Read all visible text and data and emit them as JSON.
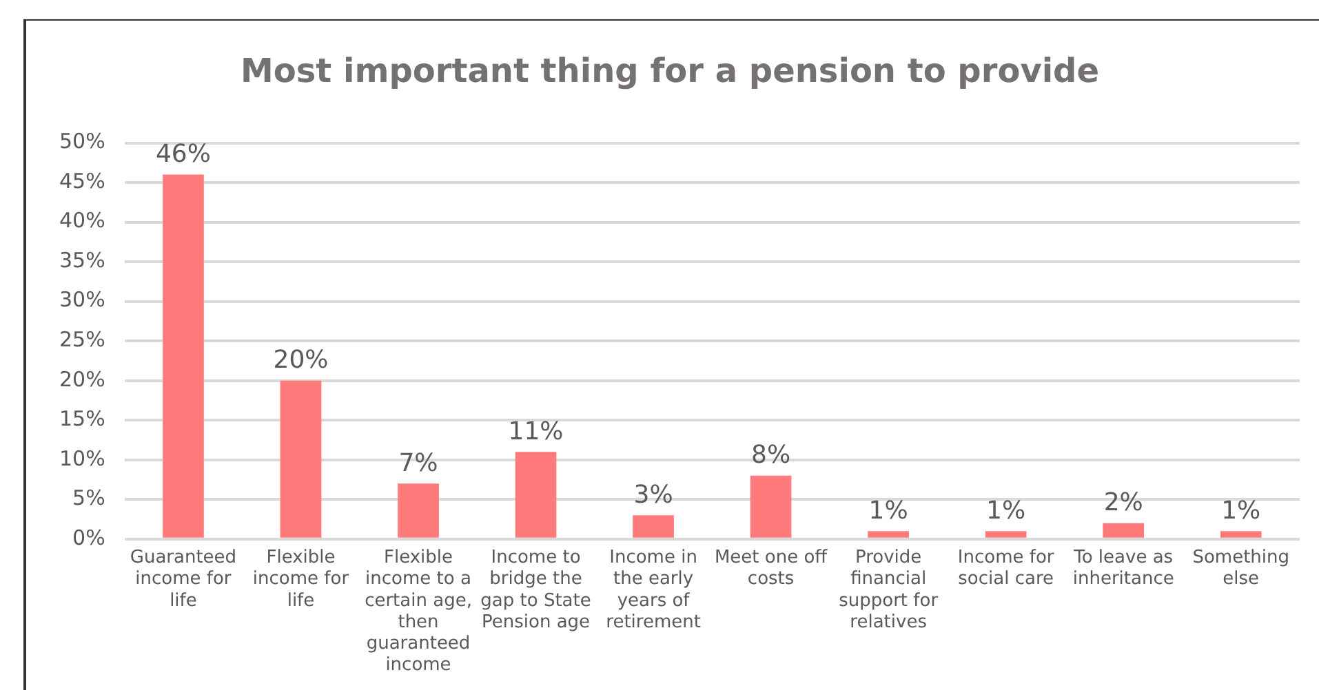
{
  "chart_data": {
    "type": "bar",
    "title": "Most important thing for a pension to provide",
    "categories": [
      "Guaranteed income for life",
      "Flexible income for life",
      "Flexible income to a certain age, then guaranteed income",
      "Income to bridge the gap to State Pension age",
      "Income in the early years of retirement",
      "Meet one off costs",
      "Provide financial support for relatives",
      "Income for social care",
      "To leave as inheritance",
      "Something else"
    ],
    "values": [
      46,
      20,
      7,
      11,
      3,
      8,
      1,
      1,
      2,
      1
    ],
    "value_labels": [
      "46%",
      "20%",
      "7%",
      "11%",
      "3%",
      "8%",
      "1%",
      "1%",
      "2%",
      "1%"
    ],
    "color": "#ff7b7b",
    "ylim": [
      0,
      50
    ],
    "yticks": [
      {
        "value": 0,
        "label": "0%"
      },
      {
        "value": 5,
        "label": "5%"
      },
      {
        "value": 10,
        "label": "10%"
      },
      {
        "value": 15,
        "label": "15%"
      },
      {
        "value": 20,
        "label": "20%"
      },
      {
        "value": 25,
        "label": "25%"
      },
      {
        "value": 30,
        "label": "30%"
      },
      {
        "value": 35,
        "label": "35%"
      },
      {
        "value": 40,
        "label": "40%"
      },
      {
        "value": 45,
        "label": "45%"
      },
      {
        "value": 50,
        "label": "50%"
      }
    ],
    "grid": "y",
    "legend": false
  }
}
